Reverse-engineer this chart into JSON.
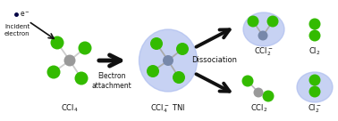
{
  "bg_color": "#ffffff",
  "green_color": "#33bb00",
  "gray_color": "#999999",
  "dark_gray": "#777777",
  "blue_gray_color": "#7788aa",
  "ellipse_color": "#aabbee",
  "ellipse_alpha": 0.65,
  "arrow_color": "#111111",
  "text_color": "#111111",
  "labels": {
    "ccl4": "CCl$_4$",
    "electron_attachment": "Electron\nattachment",
    "tni": "CCl$_4^-$ TNI",
    "dissociation": "Dissociation",
    "ccl2neg": "CCl$_2^-$",
    "cl2": "Cl$_2$",
    "cl2neg": "Cl$_2^-$",
    "ccl2": "CCl$_2$",
    "incident": "Incident\nelectron",
    "eminus": "e$^-$"
  },
  "figsize": [
    3.78,
    1.36
  ],
  "dpi": 100
}
